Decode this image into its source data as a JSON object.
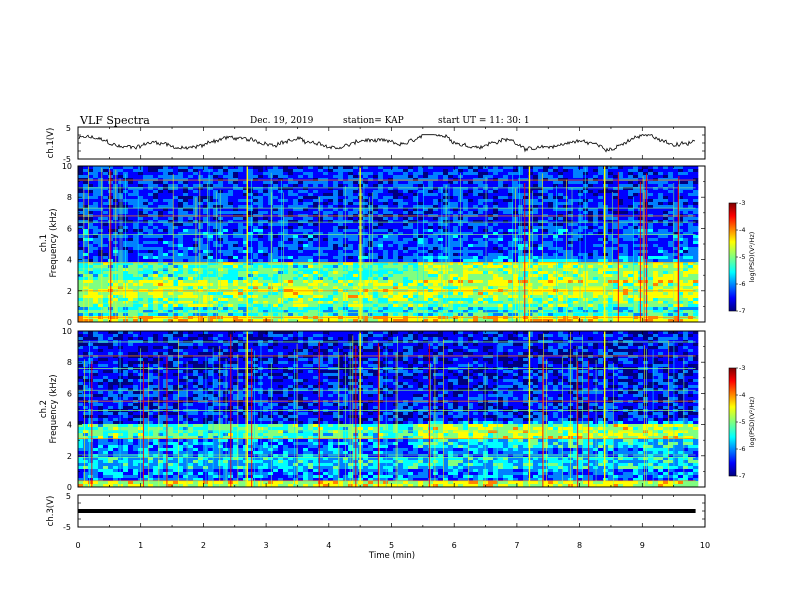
{
  "header": {
    "title": "VLF Spectra",
    "date": "Dec. 19, 2019",
    "station": "station= KAP",
    "start": "start  UT =   11: 30: 1"
  },
  "colors": {
    "spectrum": [
      "#00007f",
      "#0000ff",
      "#0080ff",
      "#00ffff",
      "#80ff80",
      "#ffff00",
      "#ff8000",
      "#ff0000",
      "#7f0000"
    ],
    "trace": "#000000"
  },
  "chart_data": [
    {
      "type": "line",
      "name": "ch1-waveform",
      "ylabel": "ch.1(V)",
      "ylim": [
        -5,
        5
      ],
      "yticks": [
        "5",
        "-5"
      ],
      "description_range": "noisy trace roughly between -3 and +2.5 V"
    },
    {
      "type": "heatmap",
      "name": "ch1-spectrogram",
      "ylabel_top": "ch.1",
      "ylabel": "Frequency (kHz)",
      "ylim": [
        0,
        10
      ],
      "yticks": [
        "0",
        "2",
        "4",
        "6",
        "8",
        "10"
      ],
      "bands_khz": [
        {
          "lo": 0.0,
          "hi": 0.3,
          "level": 0.7
        },
        {
          "lo": 0.3,
          "hi": 1.0,
          "level": 0.45
        },
        {
          "lo": 1.0,
          "hi": 1.6,
          "level": 0.55
        },
        {
          "lo": 1.6,
          "hi": 2.6,
          "level": 0.62
        },
        {
          "lo": 2.6,
          "hi": 3.9,
          "level": 0.5
        },
        {
          "lo": 3.9,
          "hi": 6.0,
          "level": 0.25
        },
        {
          "lo": 6.0,
          "hi": 10.0,
          "level": 0.22
        }
      ],
      "colorbar": {
        "label": "log(PSD)(V²/Hz)",
        "range": [
          -7,
          -3
        ],
        "ticks": [
          "-3",
          "-4",
          "-5",
          "-6",
          "-7"
        ]
      }
    },
    {
      "type": "heatmap",
      "name": "ch2-spectrogram",
      "ylabel_top": "ch.2",
      "ylabel": "Frequency (kHz)",
      "ylim": [
        0,
        10
      ],
      "yticks": [
        "0",
        "2",
        "4",
        "6",
        "8",
        "10"
      ],
      "bands_khz": [
        {
          "lo": 0.0,
          "hi": 0.4,
          "level": 0.65
        },
        {
          "lo": 0.4,
          "hi": 1.2,
          "level": 0.3
        },
        {
          "lo": 1.2,
          "hi": 2.0,
          "level": 0.4
        },
        {
          "lo": 2.0,
          "hi": 3.0,
          "level": 0.3
        },
        {
          "lo": 3.0,
          "hi": 4.0,
          "level": 0.5
        },
        {
          "lo": 4.0,
          "hi": 6.5,
          "level": 0.2
        },
        {
          "lo": 6.5,
          "hi": 10.0,
          "level": 0.18
        }
      ],
      "colorbar": {
        "label": "log(PSD)(V²/Hz)",
        "range": [
          -7,
          -3
        ],
        "ticks": [
          "-3",
          "-4",
          "-5",
          "-6",
          "-7"
        ]
      }
    },
    {
      "type": "line",
      "name": "ch3-waveform",
      "ylabel": "ch.3(V)",
      "ylim": [
        -5,
        5
      ],
      "yticks": [
        "5",
        "-5"
      ],
      "constant_value_v": 0
    }
  ],
  "xaxis": {
    "label": "Time (min)",
    "xlim": [
      0,
      10
    ],
    "ticks": [
      "0",
      "1",
      "2",
      "3",
      "4",
      "5",
      "6",
      "7",
      "8",
      "9",
      "10"
    ],
    "data_end_min": 9.85
  }
}
